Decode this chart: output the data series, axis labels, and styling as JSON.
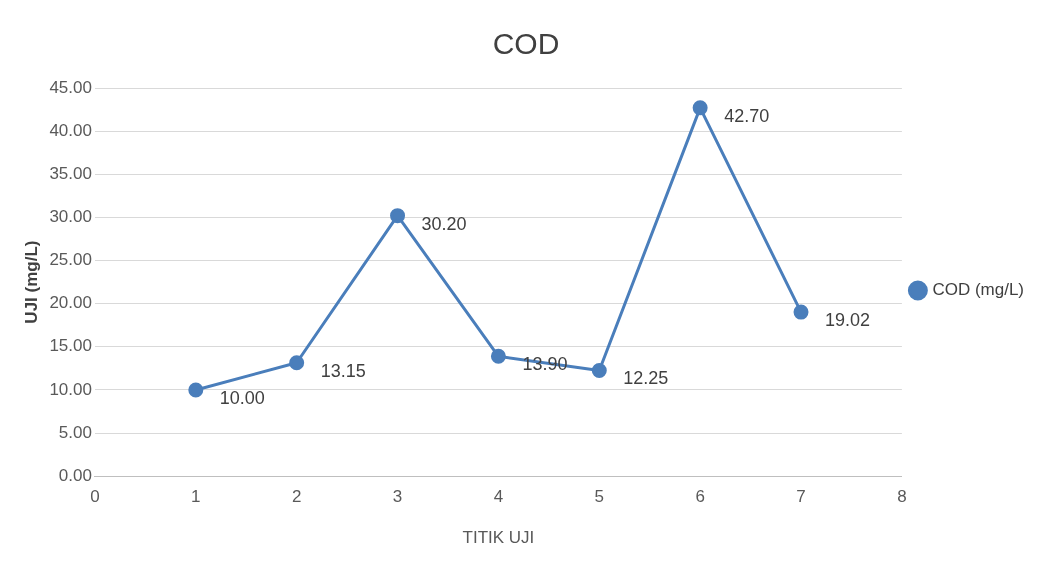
{
  "chart_data": {
    "type": "line",
    "title": "COD",
    "xlabel": "TITIK UJI",
    "ylabel": "UJI (mg/L)",
    "x": [
      1,
      2,
      3,
      4,
      5,
      6,
      7
    ],
    "series": [
      {
        "name": "COD (mg/L)",
        "color": "#4a7ebb",
        "values": [
          10.0,
          13.15,
          30.2,
          13.9,
          12.25,
          42.7,
          19.02
        ],
        "value_labels": [
          "10.00",
          "13.15",
          "30.20",
          "13.90",
          "12.25",
          "42.70",
          "19.02"
        ]
      }
    ],
    "xlim": [
      0,
      8
    ],
    "xticks": [
      0,
      1,
      2,
      3,
      4,
      5,
      6,
      7,
      8
    ],
    "ylim": [
      0,
      45
    ],
    "yticks": [
      {
        "value": 0,
        "label": "0.00"
      },
      {
        "value": 5,
        "label": "5.00"
      },
      {
        "value": 10,
        "label": "10.00"
      },
      {
        "value": 15,
        "label": "15.00"
      },
      {
        "value": 20,
        "label": "20.00"
      },
      {
        "value": 25,
        "label": "25.00"
      },
      {
        "value": 30,
        "label": "30.00"
      },
      {
        "value": 35,
        "label": "35.00"
      },
      {
        "value": 40,
        "label": "40.00"
      },
      {
        "value": 45,
        "label": "45.00"
      }
    ],
    "grid": "y",
    "legend": "right",
    "marker": "circle",
    "line_style": "solid"
  }
}
